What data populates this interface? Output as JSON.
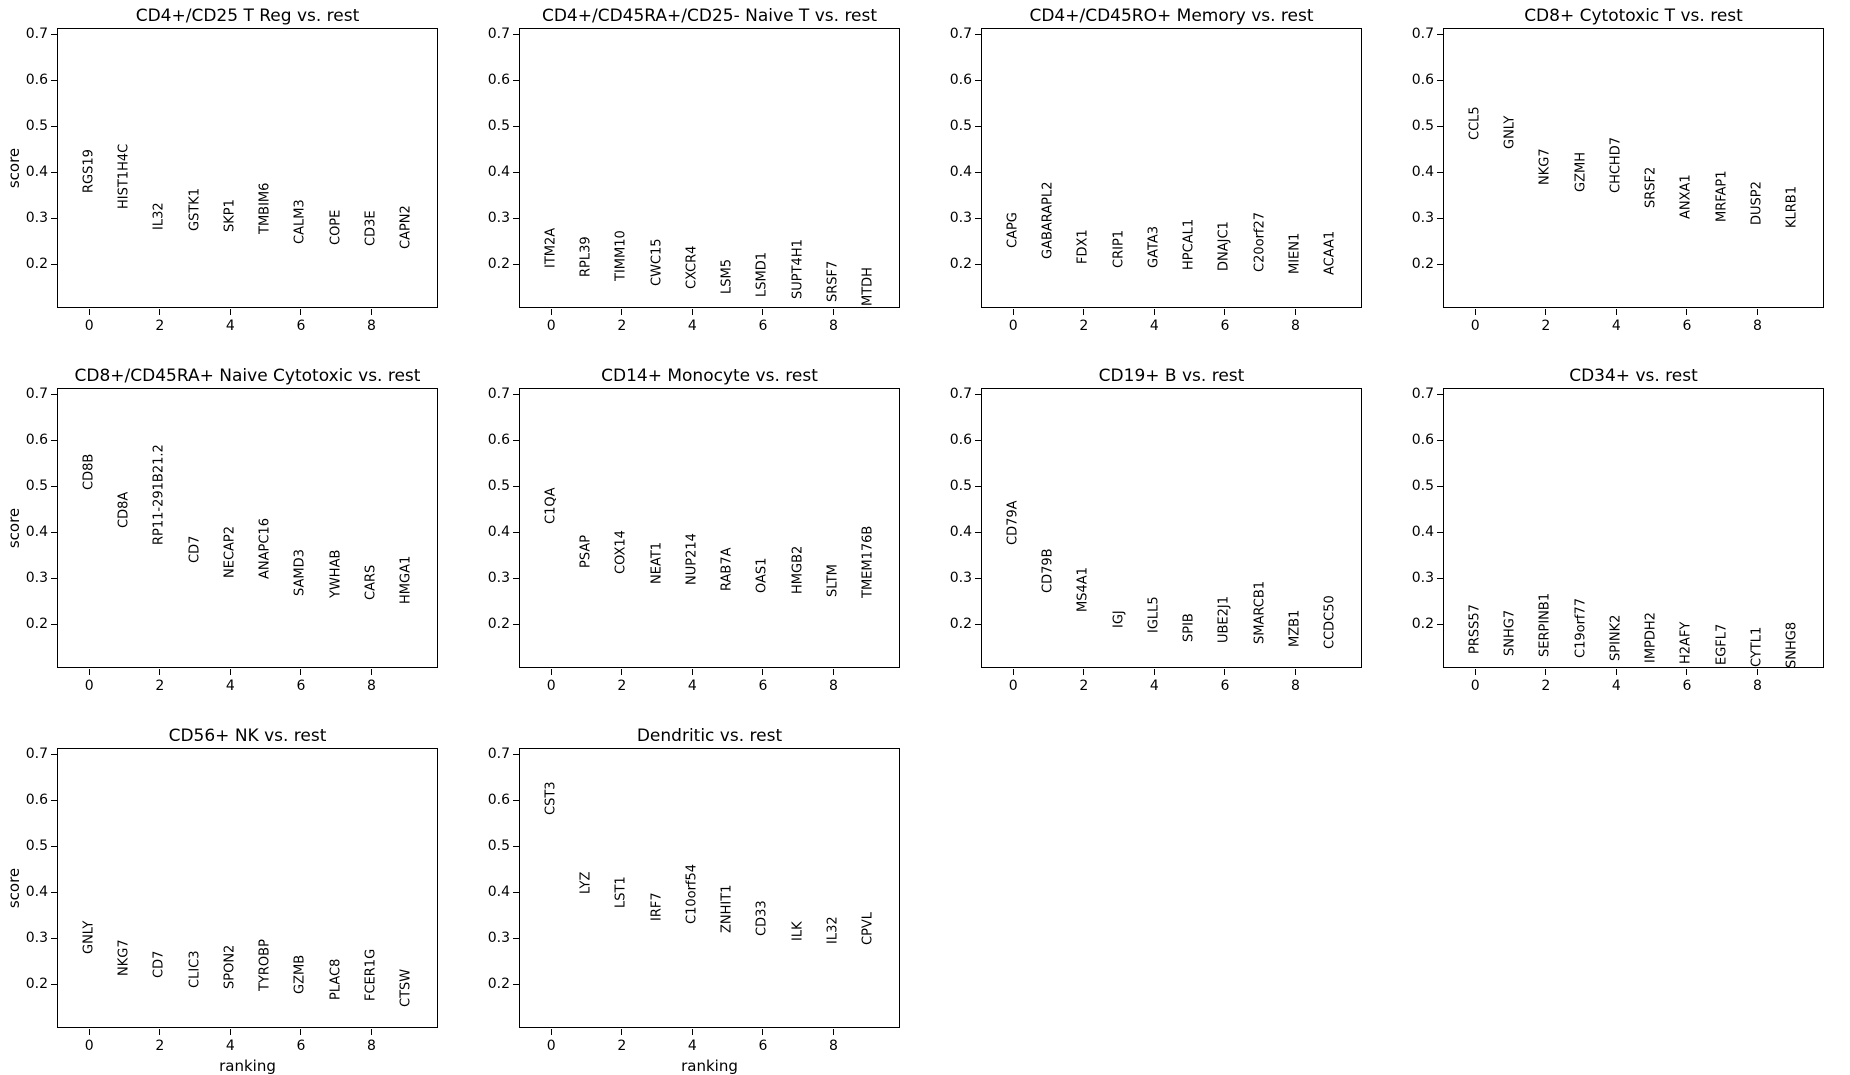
{
  "figure": {
    "background_color": "#ffffff",
    "text_color": "#000000",
    "axis_color": "#000000"
  },
  "chart_data": {
    "type": "scatter",
    "subtype": "rank-genes-groups-text-ranking",
    "description": "Grid of 10 panels; each panel places gene-name text labels vertically at (ranking, score).",
    "layout_hints": {
      "grid_columns": 4,
      "grid_rows": 3,
      "gridlines": false,
      "legend": "none",
      "ylabel_on_first_column_only": true,
      "xlabel_on_bottom_row_only": true
    },
    "shared": {
      "ylabel": "score",
      "xlabel": "ranking",
      "xlim": [
        -0.9,
        9.9
      ],
      "ylim": [
        0.104,
        0.713
      ],
      "xtick_labels": [
        "0",
        "2",
        "4",
        "6",
        "8"
      ],
      "ytick_labels": [
        "0.2",
        "0.3",
        "0.4",
        "0.5",
        "0.6",
        "0.7"
      ]
    },
    "panels": [
      {
        "title": "CD4+/CD25 T Reg vs. rest",
        "genes": [
          {
            "name": "RGS19",
            "score": 0.355
          },
          {
            "name": "HIST1H4C",
            "score": 0.32
          },
          {
            "name": "IL32",
            "score": 0.274
          },
          {
            "name": "GSTK1",
            "score": 0.272
          },
          {
            "name": "SKP1",
            "score": 0.27
          },
          {
            "name": "TMBIM6",
            "score": 0.265
          },
          {
            "name": "CALM3",
            "score": 0.244
          },
          {
            "name": "COPE",
            "score": 0.241
          },
          {
            "name": "CD3E",
            "score": 0.239
          },
          {
            "name": "CAPN2",
            "score": 0.232
          }
        ]
      },
      {
        "title": "CD4+/CD45RA+/CD25- Naive T vs. rest",
        "genes": [
          {
            "name": "ITM2A",
            "score": 0.191
          },
          {
            "name": "RPL39",
            "score": 0.172
          },
          {
            "name": "TIMM10",
            "score": 0.163
          },
          {
            "name": "CWC15",
            "score": 0.152
          },
          {
            "name": "CXCR4",
            "score": 0.146
          },
          {
            "name": "LSM5",
            "score": 0.135
          },
          {
            "name": "LSMD1",
            "score": 0.127
          },
          {
            "name": "SUPT4H1",
            "score": 0.124
          },
          {
            "name": "SRSF7",
            "score": 0.116
          },
          {
            "name": "MTDH",
            "score": 0.109
          }
        ]
      },
      {
        "title": "CD4+/CD45RO+ Memory vs. rest",
        "genes": [
          {
            "name": "CAPG",
            "score": 0.235
          },
          {
            "name": "GABARAPL2",
            "score": 0.211
          },
          {
            "name": "FDX1",
            "score": 0.2
          },
          {
            "name": "CRIP1",
            "score": 0.192
          },
          {
            "name": "GATA3",
            "score": 0.191
          },
          {
            "name": "HPCAL1",
            "score": 0.187
          },
          {
            "name": "DNAJC1",
            "score": 0.185
          },
          {
            "name": "C20orf27",
            "score": 0.183
          },
          {
            "name": "MIEN1",
            "score": 0.177
          },
          {
            "name": "ACAA1",
            "score": 0.176
          }
        ]
      },
      {
        "title": "CD8+ Cytotoxic T vs. rest",
        "genes": [
          {
            "name": "CCL5",
            "score": 0.47
          },
          {
            "name": "GNLY",
            "score": 0.45
          },
          {
            "name": "NKG7",
            "score": 0.372
          },
          {
            "name": "GZMH",
            "score": 0.357
          },
          {
            "name": "CHCHD7",
            "score": 0.354
          },
          {
            "name": "SRSF2",
            "score": 0.322
          },
          {
            "name": "ANXA1",
            "score": 0.298
          },
          {
            "name": "MRFAP1",
            "score": 0.291
          },
          {
            "name": "DUSP2",
            "score": 0.285
          },
          {
            "name": "KLRB1",
            "score": 0.278
          }
        ]
      },
      {
        "title": "CD8+/CD45RA+ Naive Cytotoxic vs. rest",
        "genes": [
          {
            "name": "CD8B",
            "score": 0.491
          },
          {
            "name": "CD8A",
            "score": 0.409
          },
          {
            "name": "RP11-291B21.2",
            "score": 0.372
          },
          {
            "name": "CD7",
            "score": 0.333
          },
          {
            "name": "NECAP2",
            "score": 0.3
          },
          {
            "name": "ANAPC16",
            "score": 0.298
          },
          {
            "name": "SAMD3",
            "score": 0.261
          },
          {
            "name": "YWHAB",
            "score": 0.257
          },
          {
            "name": "CARS",
            "score": 0.252
          },
          {
            "name": "HMGA1",
            "score": 0.243
          }
        ]
      },
      {
        "title": "CD14+ Monocyte vs. rest",
        "genes": [
          {
            "name": "C1QA",
            "score": 0.417
          },
          {
            "name": "PSAP",
            "score": 0.322
          },
          {
            "name": "COX14",
            "score": 0.309
          },
          {
            "name": "NEAT1",
            "score": 0.286
          },
          {
            "name": "NUP214",
            "score": 0.285
          },
          {
            "name": "RAB7A",
            "score": 0.272
          },
          {
            "name": "OAS1",
            "score": 0.267
          },
          {
            "name": "HMGB2",
            "score": 0.265
          },
          {
            "name": "SLTM",
            "score": 0.258
          },
          {
            "name": "TMEM176B",
            "score": 0.256
          }
        ]
      },
      {
        "title": "CD19+ B vs. rest",
        "genes": [
          {
            "name": "CD79A",
            "score": 0.372
          },
          {
            "name": "CD79B",
            "score": 0.267
          },
          {
            "name": "MS4A1",
            "score": 0.226
          },
          {
            "name": "IGJ",
            "score": 0.191
          },
          {
            "name": "IGLL5",
            "score": 0.18
          },
          {
            "name": "SPIB",
            "score": 0.16
          },
          {
            "name": "UBE2J1",
            "score": 0.158
          },
          {
            "name": "SMARCB1",
            "score": 0.156
          },
          {
            "name": "MZB1",
            "score": 0.15
          },
          {
            "name": "CCDC50",
            "score": 0.146
          }
        ]
      },
      {
        "title": "CD34+ vs. rest",
        "genes": [
          {
            "name": "PRSS57",
            "score": 0.135
          },
          {
            "name": "SNHG7",
            "score": 0.13
          },
          {
            "name": "SERPINB1",
            "score": 0.127
          },
          {
            "name": "C19orf77",
            "score": 0.125
          },
          {
            "name": "SPINK2",
            "score": 0.12
          },
          {
            "name": "IMPDH2",
            "score": 0.115
          },
          {
            "name": "H2AFY",
            "score": 0.112
          },
          {
            "name": "EGFL7",
            "score": 0.11
          },
          {
            "name": "CYTL1",
            "score": 0.107
          },
          {
            "name": "SNHG8",
            "score": 0.105
          }
        ]
      },
      {
        "title": "CD56+ NK vs. rest",
        "genes": [
          {
            "name": "GNLY",
            "score": 0.265
          },
          {
            "name": "NKG7",
            "score": 0.217
          },
          {
            "name": "CD7",
            "score": 0.213
          },
          {
            "name": "CLIC3",
            "score": 0.191
          },
          {
            "name": "SPON2",
            "score": 0.189
          },
          {
            "name": "TYROBP",
            "score": 0.185
          },
          {
            "name": "GZMB",
            "score": 0.178
          },
          {
            "name": "PLAC8",
            "score": 0.165
          },
          {
            "name": "FCER1G",
            "score": 0.163
          },
          {
            "name": "CTSW",
            "score": 0.15
          }
        ]
      },
      {
        "title": "Dendritic vs. rest",
        "genes": [
          {
            "name": "CST3",
            "score": 0.567
          },
          {
            "name": "LYZ",
            "score": 0.396
          },
          {
            "name": "LST1",
            "score": 0.365
          },
          {
            "name": "IRF7",
            "score": 0.337
          },
          {
            "name": "C10orf54",
            "score": 0.33
          },
          {
            "name": "ZNHIT1",
            "score": 0.311
          },
          {
            "name": "CD33",
            "score": 0.304
          },
          {
            "name": "ILK",
            "score": 0.293
          },
          {
            "name": "IL32",
            "score": 0.287
          },
          {
            "name": "CPVL",
            "score": 0.285
          }
        ]
      }
    ]
  }
}
